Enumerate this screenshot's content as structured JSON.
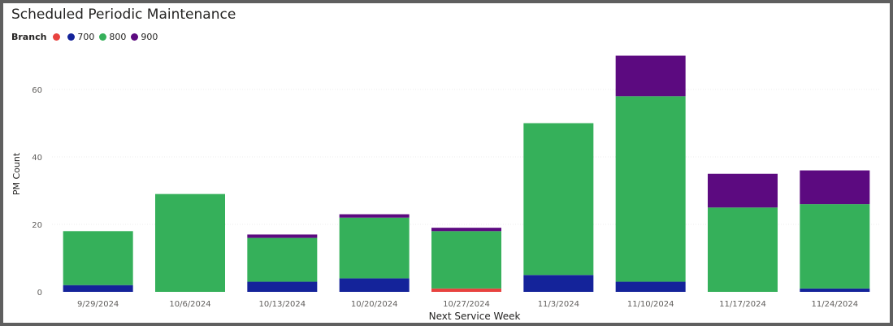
{
  "chart_data": {
    "type": "bar",
    "stacked": true,
    "title": "Scheduled Periodic Maintenance",
    "xlabel": "Next Service Week",
    "ylabel": "PM Count",
    "legend_title": "Branch",
    "legend_position": "top-left",
    "grid": true,
    "ylim": [
      0,
      70
    ],
    "yticks": [
      0,
      20,
      40,
      60
    ],
    "categories": [
      "9/29/2024",
      "10/6/2024",
      "10/13/2024",
      "10/20/2024",
      "10/27/2024",
      "11/3/2024",
      "11/10/2024",
      "11/17/2024",
      "11/24/2024"
    ],
    "series": [
      {
        "name": "",
        "color": "#e8423f",
        "values": [
          0,
          0,
          0,
          0,
          1,
          0,
          0,
          0,
          0
        ]
      },
      {
        "name": "700",
        "color": "#14239a",
        "values": [
          2,
          0,
          3,
          4,
          0,
          5,
          3,
          0,
          1
        ]
      },
      {
        "name": "800",
        "color": "#35b05a",
        "values": [
          16,
          29,
          13,
          18,
          17,
          45,
          55,
          25,
          25
        ]
      },
      {
        "name": "900",
        "color": "#5c0a80",
        "values": [
          0,
          0,
          1,
          1,
          1,
          0,
          12,
          10,
          10
        ]
      }
    ]
  }
}
